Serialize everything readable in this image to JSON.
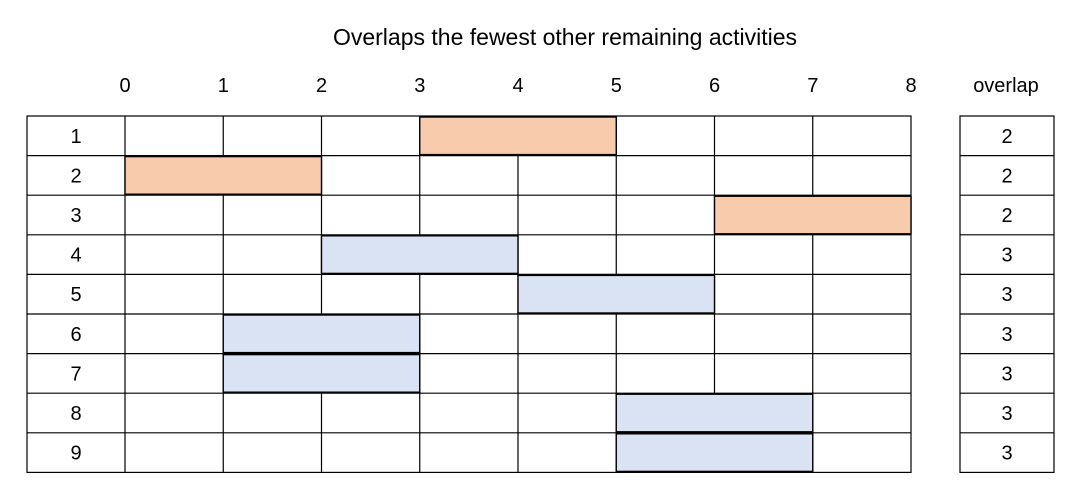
{
  "title": "Overlaps the fewest other remaining activities",
  "overlap_header": "overlap",
  "axis_ticks": [
    "0",
    "1",
    "2",
    "3",
    "4",
    "5",
    "6",
    "7",
    "8"
  ],
  "colors": {
    "selected": "#F8CBAD",
    "remaining": "#DAE3F3",
    "grid": "#000000"
  },
  "activities": [
    {
      "label": "1",
      "start": 3,
      "end": 5,
      "overlap": "2",
      "status": "selected"
    },
    {
      "label": "2",
      "start": 0,
      "end": 2,
      "overlap": "2",
      "status": "selected"
    },
    {
      "label": "3",
      "start": 6,
      "end": 8,
      "overlap": "2",
      "status": "selected"
    },
    {
      "label": "4",
      "start": 2,
      "end": 4,
      "overlap": "3",
      "status": "remaining"
    },
    {
      "label": "5",
      "start": 4,
      "end": 6,
      "overlap": "3",
      "status": "remaining"
    },
    {
      "label": "6",
      "start": 1,
      "end": 3,
      "overlap": "3",
      "status": "remaining"
    },
    {
      "label": "7",
      "start": 1,
      "end": 3,
      "overlap": "3",
      "status": "remaining"
    },
    {
      "label": "8",
      "start": 5,
      "end": 7,
      "overlap": "3",
      "status": "remaining"
    },
    {
      "label": "9",
      "start": 5,
      "end": 7,
      "overlap": "3",
      "status": "remaining"
    }
  ]
}
